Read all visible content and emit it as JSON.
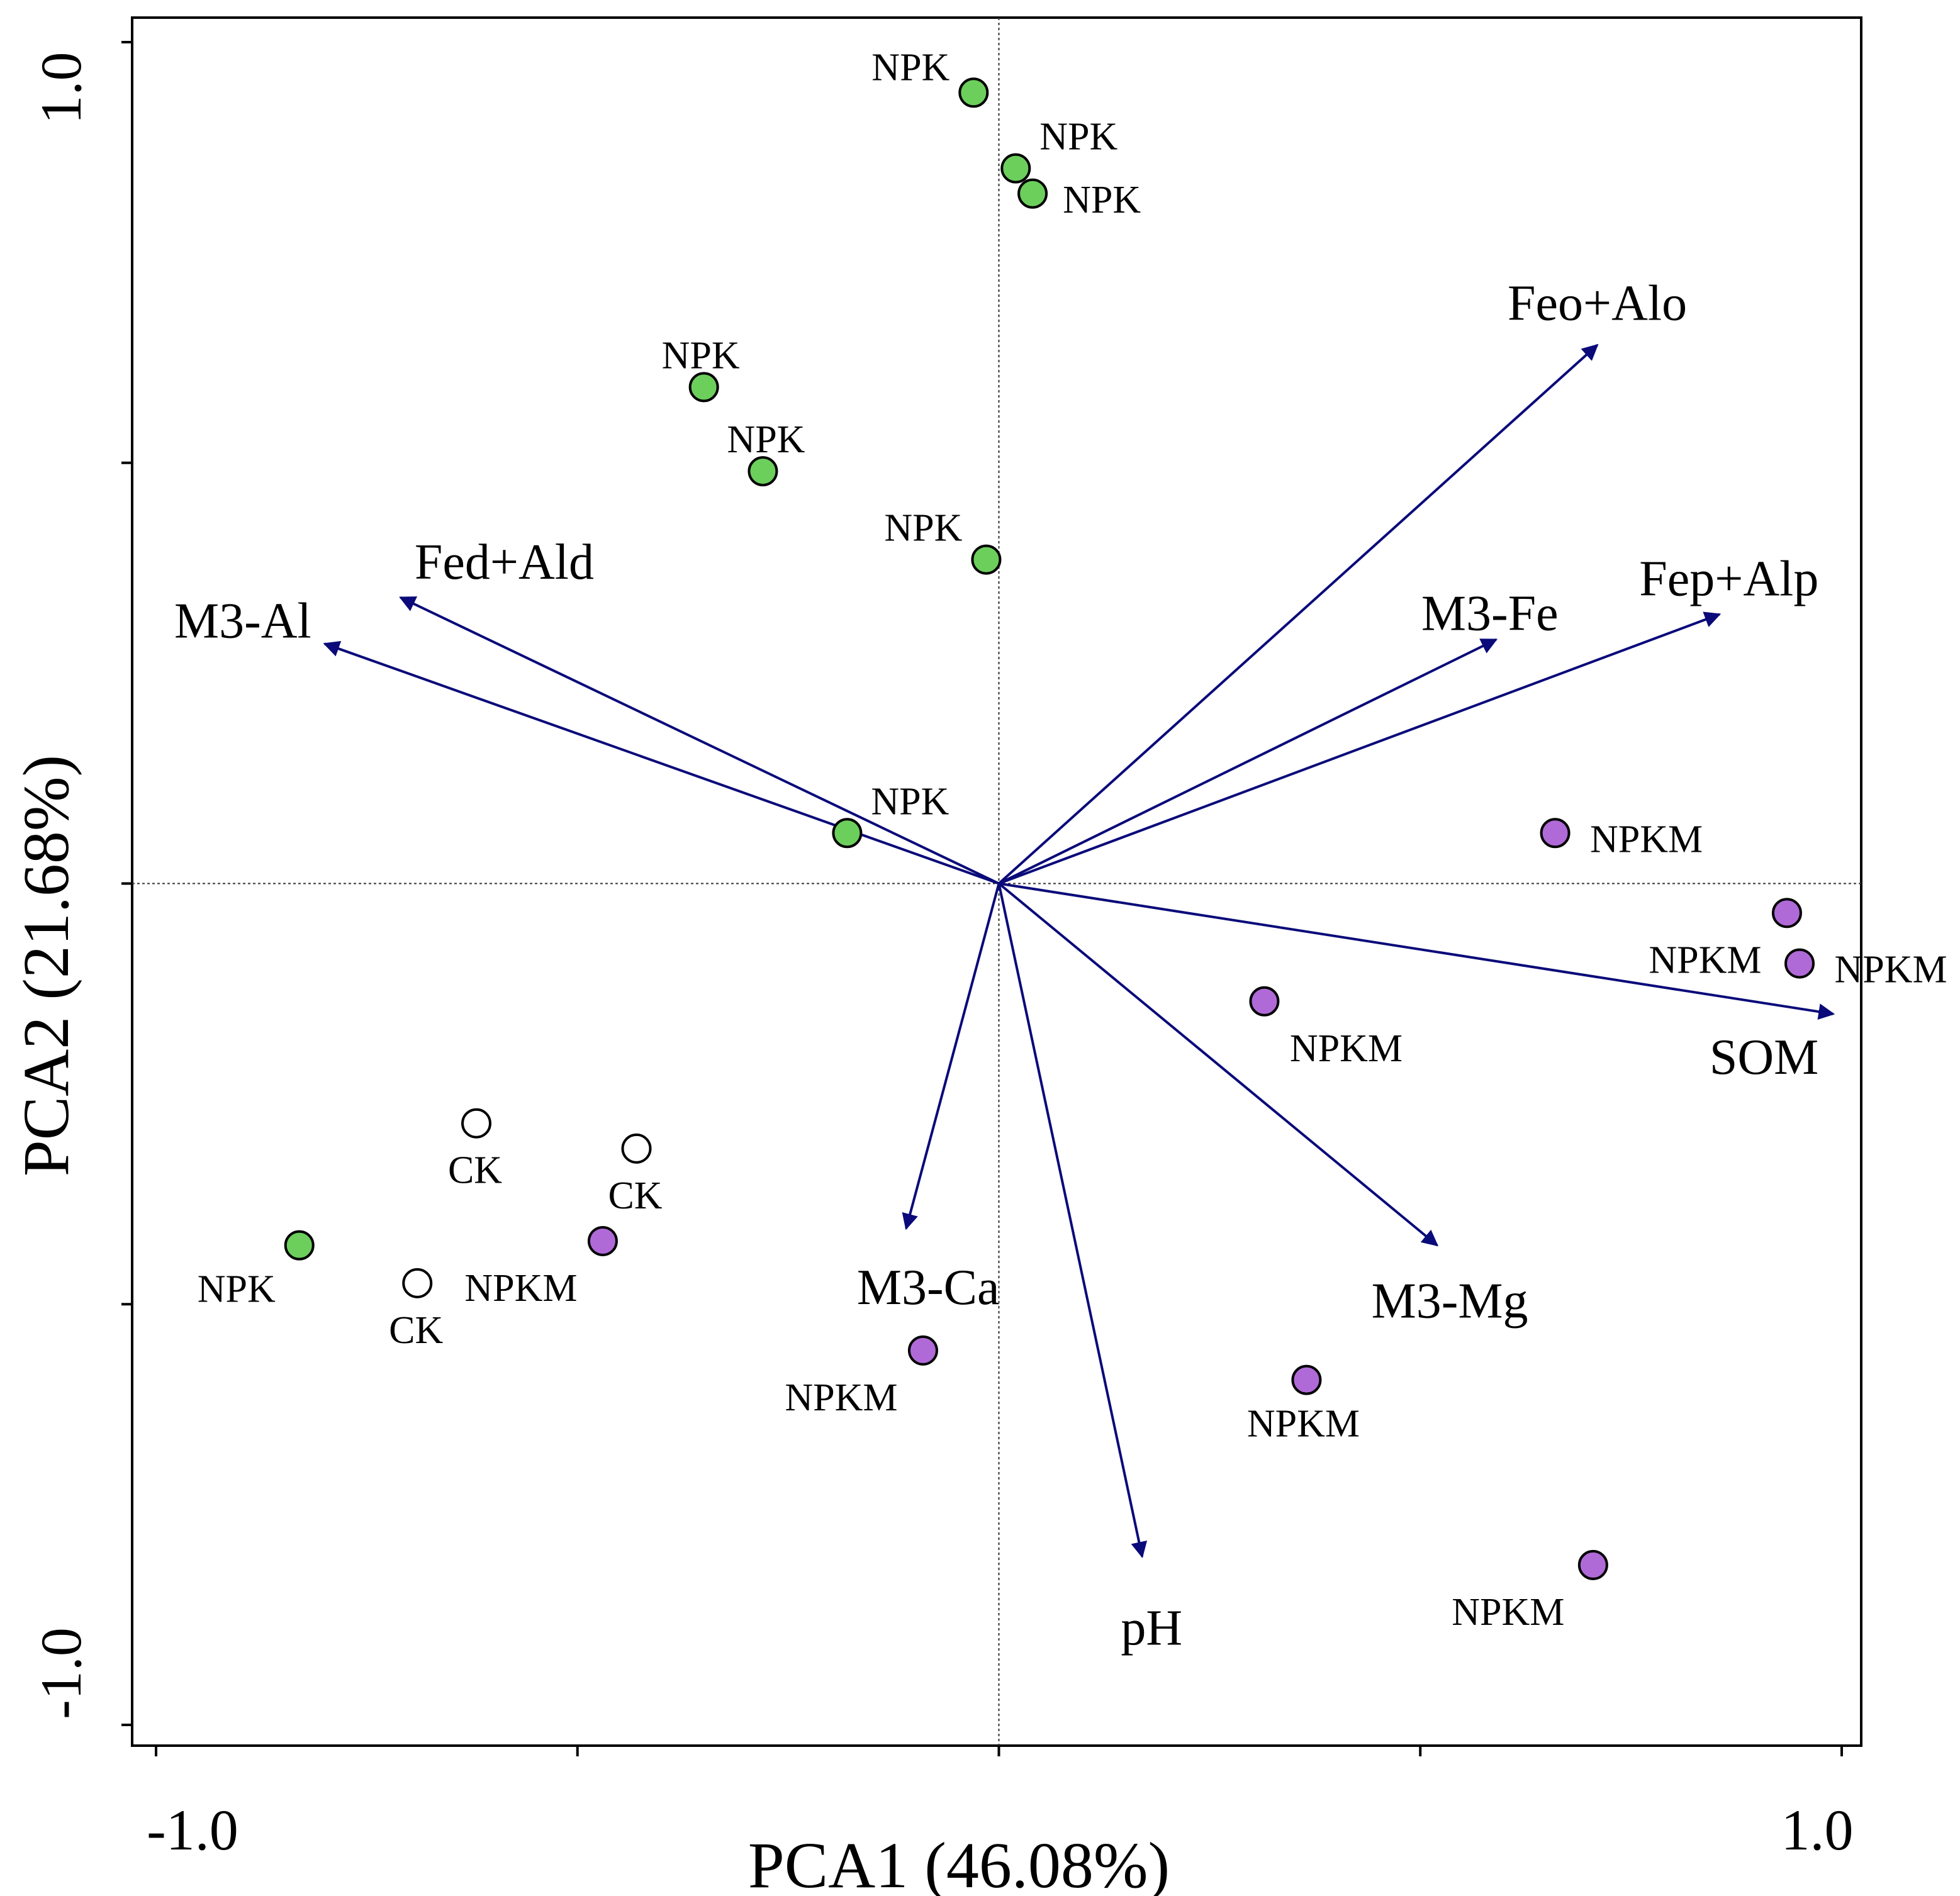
{
  "chart_data": {
    "type": "scatter",
    "subtype": "pca-biplot",
    "xlabel": "PCA1 (46.08%)",
    "ylabel": "PCA2 (21.68%)",
    "xlim": [
      -1.0,
      1.0
    ],
    "ylim": [
      -1.0,
      1.0
    ],
    "x_tick_labels": [
      "-1.0",
      "1.0"
    ],
    "y_tick_labels": [
      "-1.0",
      "1.0"
    ],
    "zero_lines": true,
    "colors": {
      "CK": "#ffffff",
      "NPK": "#6ccf5c",
      "NPKM": "#b06ad8",
      "arrow": "#0a0a7a"
    },
    "series": [
      {
        "name": "NPK",
        "points": [
          {
            "x": -0.03,
            "y": 0.94,
            "label": "NPK"
          },
          {
            "x": 0.02,
            "y": 0.85,
            "label": "NPK"
          },
          {
            "x": 0.04,
            "y": 0.82,
            "label": "NPK"
          },
          {
            "x": -0.35,
            "y": 0.59,
            "label": "NPK"
          },
          {
            "x": -0.28,
            "y": 0.49,
            "label": "NPK"
          },
          {
            "x": -0.015,
            "y": 0.385,
            "label": "NPK"
          },
          {
            "x": -0.18,
            "y": 0.06,
            "label": "NPK"
          },
          {
            "x": -0.83,
            "y": -0.43,
            "label": "NPK"
          }
        ]
      },
      {
        "name": "NPKM",
        "points": [
          {
            "x": 0.66,
            "y": 0.06,
            "label": "NPKM"
          },
          {
            "x": 0.935,
            "y": -0.035,
            "label": "NPKM"
          },
          {
            "x": 0.95,
            "y": -0.095,
            "label": "NPKM"
          },
          {
            "x": 0.315,
            "y": -0.14,
            "label": "NPKM"
          },
          {
            "x": -0.47,
            "y": -0.425,
            "label": "NPKM"
          },
          {
            "x": -0.09,
            "y": -0.555,
            "label": "NPKM"
          },
          {
            "x": 0.365,
            "y": -0.59,
            "label": "NPKM"
          },
          {
            "x": 0.705,
            "y": -0.81,
            "label": "NPKM"
          }
        ]
      },
      {
        "name": "CK",
        "points": [
          {
            "x": -0.62,
            "y": -0.285,
            "label": "CK"
          },
          {
            "x": -0.43,
            "y": -0.315,
            "label": "CK"
          },
          {
            "x": -0.69,
            "y": -0.475,
            "label": "CK"
          }
        ]
      }
    ],
    "loadings": [
      {
        "name": "Feo+Alo",
        "x": 0.71,
        "y": 0.64
      },
      {
        "name": "Fep+Alp",
        "x": 0.855,
        "y": 0.32
      },
      {
        "name": "M3-Fe",
        "x": 0.59,
        "y": 0.29
      },
      {
        "name": "Fed+Ald",
        "x": -0.71,
        "y": 0.34
      },
      {
        "name": "M3-Al",
        "x": -0.8,
        "y": 0.285
      },
      {
        "name": "SOM",
        "x": 0.99,
        "y": -0.155
      },
      {
        "name": "M3-Mg",
        "x": 0.52,
        "y": -0.43
      },
      {
        "name": "M3-Ca",
        "x": -0.11,
        "y": -0.41
      },
      {
        "name": "pH",
        "x": 0.17,
        "y": -0.8
      }
    ]
  }
}
